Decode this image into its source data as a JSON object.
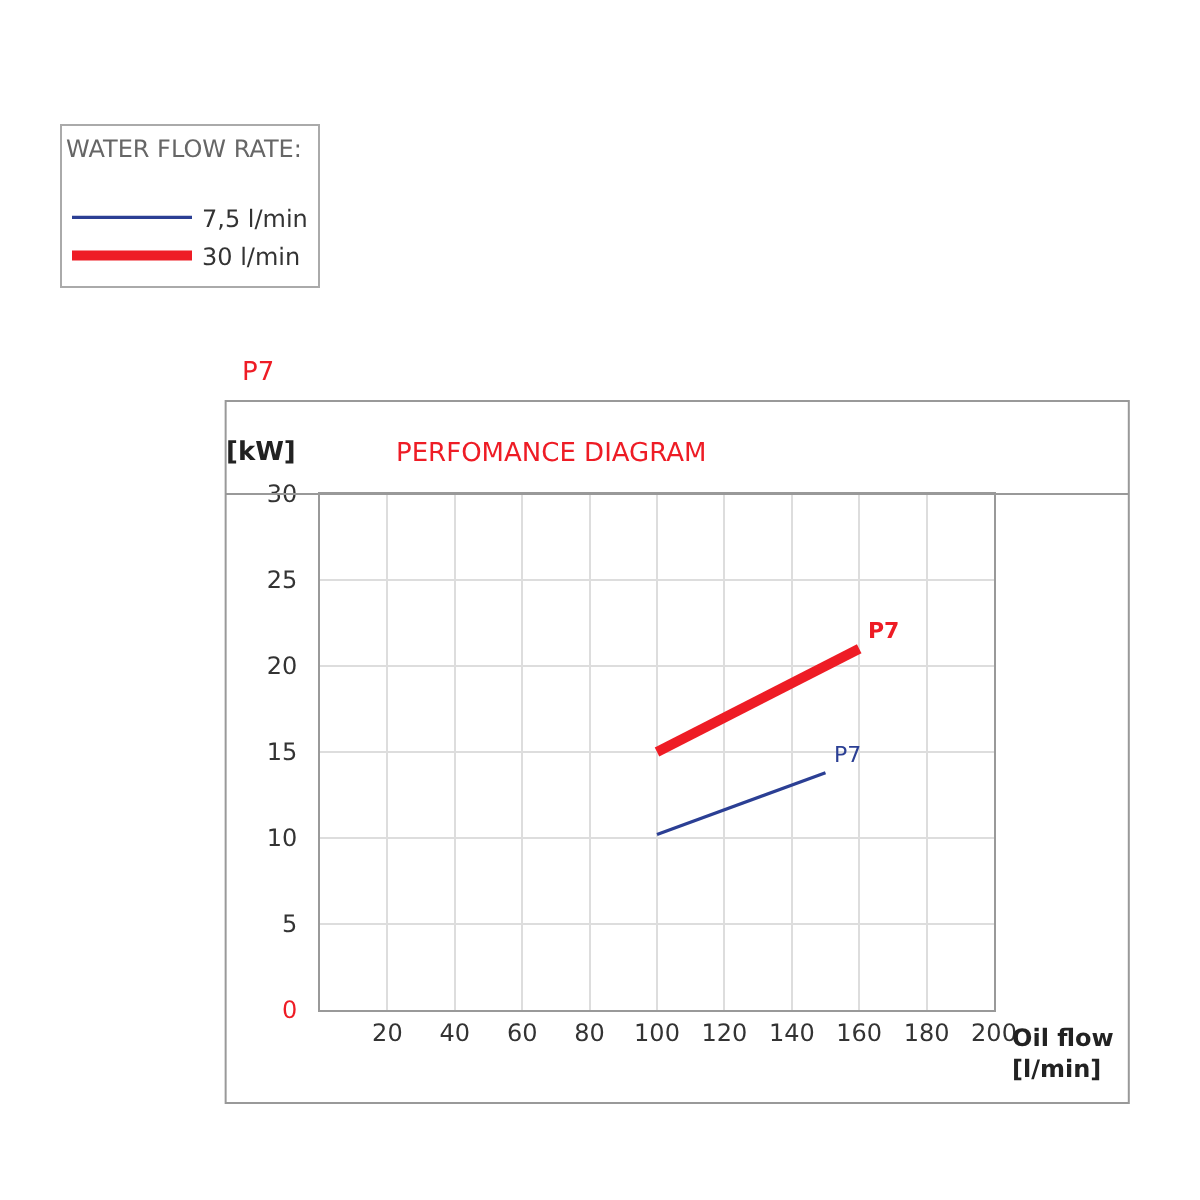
{
  "chart_data": {
    "type": "line",
    "title": "PERFOMANCE DIAGRAM",
    "subtitle": "P7",
    "xlabel": "Oil flow [l/min]",
    "ylabel": "[kW]",
    "legend_title": "WATER FLOW RATE:",
    "series": [
      {
        "name": "7,5 l/min",
        "color": "#2b3f94",
        "x": [
          100,
          150
        ],
        "values": [
          10.2,
          13.8
        ]
      },
      {
        "name": "30 l/min",
        "color": "#ee1c25",
        "x": [
          100,
          160
        ],
        "values": [
          15,
          21
        ]
      }
    ],
    "annotations": [
      {
        "text": "P7",
        "x": 150,
        "y": 13.8
      },
      {
        "text": "P7",
        "x": 160,
        "y": 21
      }
    ],
    "xlim": [
      0,
      200
    ],
    "xticks": [
      20,
      40,
      60,
      80,
      100,
      120,
      140,
      160,
      180,
      200
    ],
    "ylim": [
      0,
      30
    ],
    "yticks": [
      0,
      5,
      10,
      15,
      20,
      25,
      30
    ],
    "grid": true,
    "legend": "top",
    "marker": "none",
    "line_style": "solid"
  }
}
